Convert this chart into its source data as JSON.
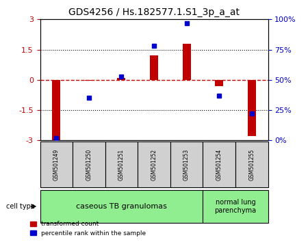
{
  "title": "GDS4256 / Hs.182577.1.S1_3p_a_at",
  "samples": [
    "GSM501249",
    "GSM501250",
    "GSM501251",
    "GSM501252",
    "GSM501253",
    "GSM501254",
    "GSM501255"
  ],
  "red_values": [
    -3.0,
    -0.05,
    0.1,
    1.2,
    1.8,
    -0.3,
    -2.8
  ],
  "blue_values": [
    2,
    35,
    53,
    78,
    97,
    37,
    22
  ],
  "ylim_left": [
    -3,
    3
  ],
  "ylim_right": [
    0,
    100
  ],
  "yticks_left": [
    -3,
    -1.5,
    0,
    1.5,
    3
  ],
  "yticks_right": [
    0,
    25,
    50,
    75,
    100
  ],
  "ytick_labels_left": [
    "-3",
    "-1.5",
    "0",
    "1.5",
    "3"
  ],
  "ytick_labels_right": [
    "0%",
    "25%",
    "50%",
    "75%",
    "100%"
  ],
  "hlines": [
    0,
    1.5,
    -1.5
  ],
  "group1_samples": [
    "GSM501249",
    "GSM501250",
    "GSM501251",
    "GSM501252",
    "GSM501253"
  ],
  "group2_samples": [
    "GSM501254",
    "GSM501255"
  ],
  "group1_label": "caseous TB granulomas",
  "group2_label": "normal lung\nparenchyma",
  "cell_type_label": "cell type",
  "legend_red": "transformed count",
  "legend_blue": "percentile rank within the sample",
  "red_color": "#c00000",
  "blue_color": "#0000cc",
  "bar_width": 0.35,
  "group1_bg": "#90ee90",
  "group2_bg": "#90ee90",
  "plot_bg": "#ffffff",
  "grid_color": "#000000"
}
